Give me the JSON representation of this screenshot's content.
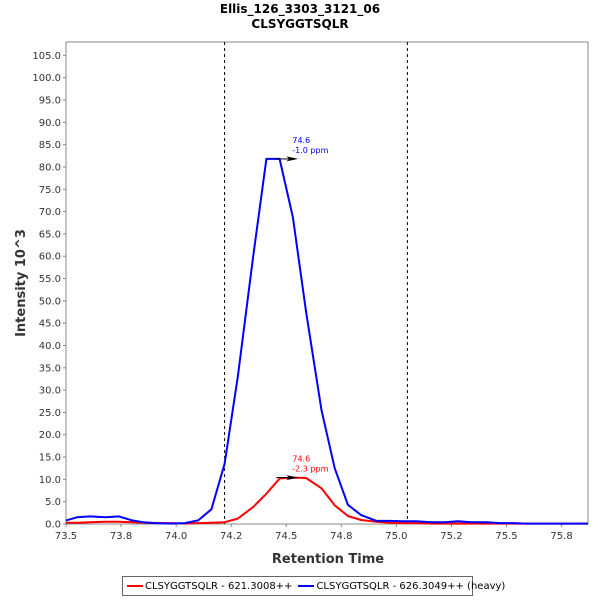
{
  "chart_data": {
    "type": "line",
    "title": "Ellis_126_3303_3121_06",
    "subtitle": "CLSYGGTSQLR",
    "xlabel": "Retention Time",
    "ylabel": "Intensity 10^3",
    "xlim": [
      73.5,
      75.87
    ],
    "ylim": [
      0,
      108
    ],
    "x_ticks": [
      "73.5",
      "73.8",
      "74.0",
      "74.2",
      "74.5",
      "74.8",
      "75.0",
      "75.2",
      "75.5",
      "75.8"
    ],
    "x_tick_values": [
      73.5,
      73.75,
      74.0,
      74.25,
      74.5,
      74.75,
      75.0,
      75.25,
      75.5,
      75.75
    ],
    "y_ticks": [
      "0.0",
      "5.0",
      "10.0",
      "15.0",
      "20.0",
      "25.0",
      "30.0",
      "35.0",
      "40.0",
      "45.0",
      "50.0",
      "55.0",
      "60.0",
      "65.0",
      "70.0",
      "75.0",
      "80.0",
      "85.0",
      "90.0",
      "95.0",
      "100.0",
      "105.0"
    ],
    "y_tick_values": [
      0,
      5,
      10,
      15,
      20,
      25,
      30,
      35,
      40,
      45,
      50,
      55,
      60,
      65,
      70,
      75,
      80,
      85,
      90,
      95,
      100,
      105
    ],
    "boundaries": [
      74.22,
      75.05
    ],
    "x": [
      73.5,
      73.55,
      73.61,
      73.68,
      73.74,
      73.8,
      73.85,
      73.91,
      73.98,
      74.04,
      74.1,
      74.16,
      74.22,
      74.28,
      74.35,
      74.41,
      74.47,
      74.53,
      74.59,
      74.66,
      74.72,
      74.78,
      74.84,
      74.91,
      74.97,
      75.03,
      75.09,
      75.16,
      75.22,
      75.28,
      75.34,
      75.41,
      75.47,
      75.53,
      75.59,
      75.66,
      75.72,
      75.78,
      75.87
    ],
    "series": [
      {
        "name": "CLSYGGTSQLR - 621.3008++",
        "color": "#ff0000",
        "values": [
          0.3,
          0.3,
          0.4,
          0.5,
          0.5,
          0.4,
          0.3,
          0.2,
          0.2,
          0.1,
          0.2,
          0.3,
          0.4,
          1.2,
          3.8,
          6.8,
          10.2,
          10.4,
          10.3,
          8.0,
          4.2,
          1.8,
          0.9,
          0.5,
          0.3,
          0.2,
          0.2,
          0.1,
          0.1,
          0.1,
          0.1,
          0.1,
          0.1,
          0.1,
          0.1,
          0.1,
          0.1,
          0.1,
          0.1
        ]
      },
      {
        "name": "CLSYGGTSQLR - 626.3049++ (heavy)",
        "color": "#0000ff",
        "values": [
          0.8,
          1.5,
          1.7,
          1.5,
          1.7,
          0.8,
          0.4,
          0.2,
          0.1,
          0.2,
          0.8,
          3.3,
          13.5,
          33.0,
          60.0,
          81.8,
          81.8,
          68.7,
          47.5,
          25.5,
          12.5,
          4.3,
          2.0,
          0.7,
          0.7,
          0.6,
          0.6,
          0.4,
          0.4,
          0.6,
          0.4,
          0.4,
          0.2,
          0.2,
          0.1,
          0.1,
          0.1,
          0.1,
          0.1
        ]
      }
    ],
    "annotations": [
      {
        "series": 1,
        "x": 74.6,
        "y": 81.8,
        "line1": "74.6",
        "line2": "-1.0 ppm",
        "color": "#0000ff"
      },
      {
        "series": 0,
        "x": 74.6,
        "y": 10.4,
        "line1": "74.6",
        "line2": "-2.3 ppm",
        "color": "#ff0000"
      }
    ],
    "legend": [
      {
        "label": "CLSYGGTSQLR - 621.3008++",
        "color": "#ff0000"
      },
      {
        "label": "CLSYGGTSQLR - 626.3049++ (heavy)",
        "color": "#0000ff"
      }
    ]
  }
}
